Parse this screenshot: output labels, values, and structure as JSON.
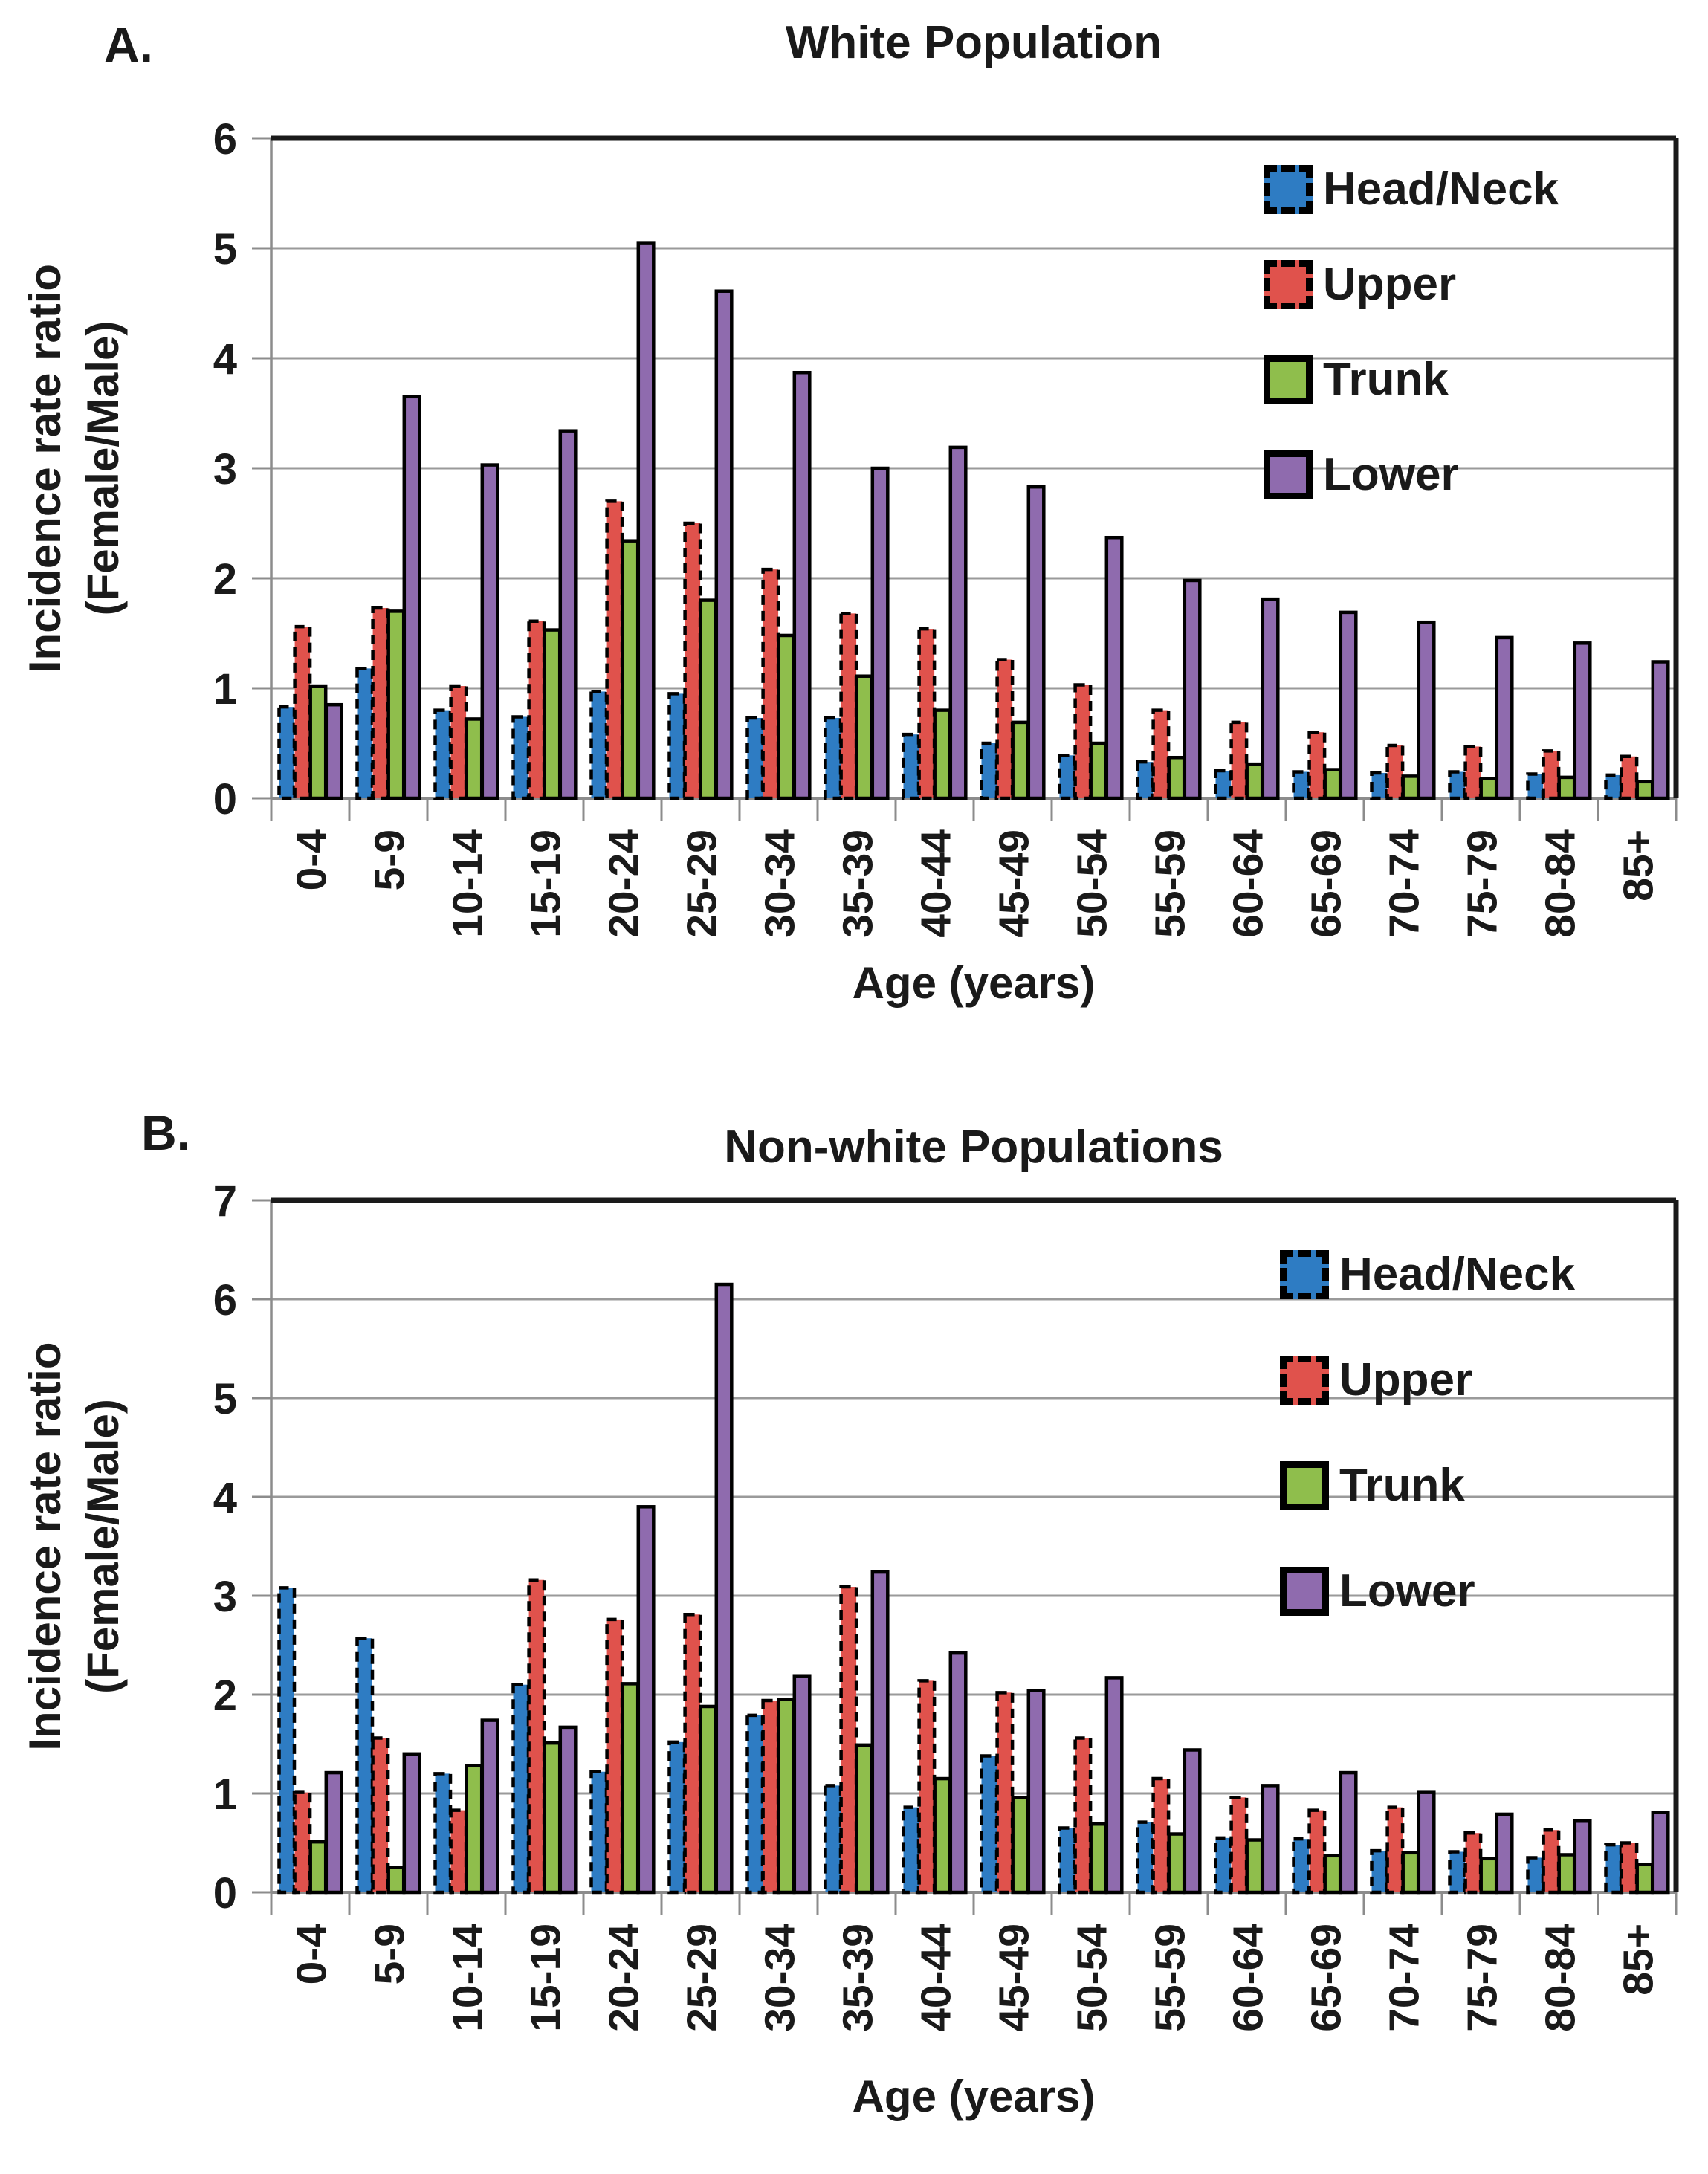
{
  "style_colors": {
    "background": "#FFFFFF",
    "gridline": "#9A9A9A",
    "axis": "#8C8C8C",
    "border": "#1A1A1A",
    "text": "#1A1A1A"
  },
  "chart_data": [
    {
      "type": "bar",
      "panel_label": "A.",
      "title": "White Population",
      "xlabel": "Age (years)",
      "ylabel_line1": "Incidence rate ratio",
      "ylabel_line2": "(Female/Male)",
      "ylim": [
        0,
        6
      ],
      "ytick_labels": [
        "0",
        "1",
        "2",
        "3",
        "4",
        "5",
        "6"
      ],
      "grid": "horizontal",
      "legend_position": "top-right",
      "categories": [
        "0-4",
        "5-9",
        "10-14",
        "15-19",
        "20-24",
        "25-29",
        "30-34",
        "35-39",
        "40-44",
        "45-49",
        "50-54",
        "55-59",
        "60-64",
        "65-69",
        "70-74",
        "75-79",
        "80-84",
        "85+"
      ],
      "series": [
        {
          "name": "Head/Neck",
          "color": "#2E7CC3",
          "outline": "dashed",
          "values": [
            0.83,
            1.18,
            0.8,
            0.74,
            0.97,
            0.95,
            0.73,
            0.73,
            0.58,
            0.5,
            0.39,
            0.33,
            0.25,
            0.24,
            0.23,
            0.24,
            0.22,
            0.21
          ]
        },
        {
          "name": "Upper",
          "color": "#E0524C",
          "outline": "dashed",
          "values": [
            1.56,
            1.73,
            1.02,
            1.61,
            2.7,
            2.5,
            2.08,
            1.68,
            1.54,
            1.26,
            1.03,
            0.8,
            0.69,
            0.6,
            0.48,
            0.47,
            0.43,
            0.38
          ]
        },
        {
          "name": "Trunk",
          "color": "#8FBE4C",
          "outline": "solid",
          "values": [
            1.02,
            1.7,
            0.72,
            1.53,
            2.34,
            1.8,
            1.48,
            1.11,
            0.8,
            0.69,
            0.5,
            0.37,
            0.31,
            0.26,
            0.2,
            0.18,
            0.19,
            0.15
          ]
        },
        {
          "name": "Lower",
          "color": "#8F6BAE",
          "outline": "solid",
          "values": [
            0.85,
            3.65,
            3.03,
            3.34,
            5.05,
            4.61,
            3.87,
            3.0,
            3.19,
            2.83,
            2.37,
            1.98,
            1.81,
            1.69,
            1.6,
            1.46,
            1.41,
            1.24
          ]
        }
      ]
    },
    {
      "type": "bar",
      "panel_label": "B.",
      "title": "Non-white Populations",
      "xlabel": "Age (years)",
      "ylabel_line1": "Incidence rate ratio",
      "ylabel_line2": "(Female/Male)",
      "ylim": [
        0,
        7
      ],
      "ytick_labels": [
        "0",
        "1",
        "2",
        "3",
        "4",
        "5",
        "6",
        "7"
      ],
      "grid": "horizontal",
      "legend_position": "top-right",
      "categories": [
        "0-4",
        "5-9",
        "10-14",
        "15-19",
        "20-24",
        "25-29",
        "30-34",
        "35-39",
        "40-44",
        "45-49",
        "50-54",
        "55-59",
        "60-64",
        "65-69",
        "70-74",
        "75-79",
        "80-84",
        "85+"
      ],
      "series": [
        {
          "name": "Head/Neck",
          "color": "#2E7CC3",
          "outline": "dashed",
          "values": [
            3.08,
            2.57,
            1.2,
            2.1,
            1.22,
            1.52,
            1.79,
            1.08,
            0.86,
            1.38,
            0.65,
            0.71,
            0.55,
            0.54,
            0.42,
            0.41,
            0.35,
            0.48
          ]
        },
        {
          "name": "Upper",
          "color": "#E0524C",
          "outline": "dashed",
          "values": [
            1.01,
            1.56,
            0.83,
            3.16,
            2.76,
            2.81,
            1.94,
            3.09,
            2.14,
            2.02,
            1.56,
            1.15,
            0.96,
            0.83,
            0.86,
            0.6,
            0.63,
            0.5
          ]
        },
        {
          "name": "Trunk",
          "color": "#8FBE4C",
          "outline": "solid",
          "values": [
            0.51,
            0.25,
            1.28,
            1.51,
            2.11,
            1.88,
            1.95,
            1.49,
            1.15,
            0.96,
            0.69,
            0.59,
            0.53,
            0.37,
            0.4,
            0.34,
            0.38,
            0.28
          ]
        },
        {
          "name": "Lower",
          "color": "#8F6BAE",
          "outline": "solid",
          "values": [
            1.21,
            1.4,
            1.74,
            1.67,
            3.9,
            6.15,
            2.19,
            3.24,
            2.42,
            2.04,
            2.17,
            1.44,
            1.08,
            1.21,
            1.01,
            0.79,
            0.72,
            0.81
          ]
        }
      ]
    }
  ]
}
